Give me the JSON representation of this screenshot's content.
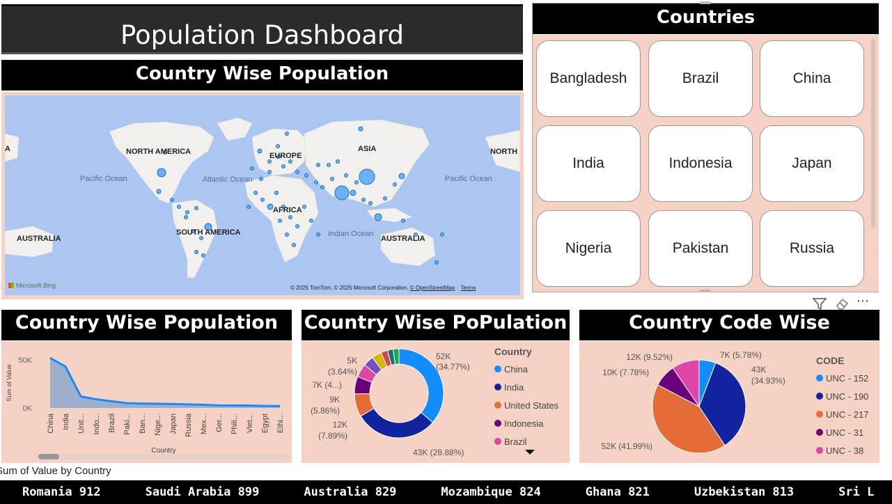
{
  "dashboard": {
    "title": "Population Dashboard"
  },
  "map_panel": {
    "title": "Country Wise Population",
    "labels": {
      "north_america": "NORTH AMERICA",
      "north_right": "NORTH",
      "europe": "EUROPE",
      "asia": "ASIA",
      "africa": "AFRICA",
      "south_america": "SOUTH AMERICA",
      "australia_left": "AUSTRALIA",
      "australia_right": "AUSTRALIA",
      "a_left": "A",
      "pacific_left": "Pacific Ocean",
      "pacific_right": "Pacific Ocean",
      "atlantic": "Atlantic Ocean",
      "indian": "Indian Ocean"
    },
    "logo": "Microsoft Bing",
    "attribution": "© 2025 TomTom, © 2025 Microsoft Corporation,",
    "osm_link": "© OpenStreetMap",
    "terms_link": "Terms"
  },
  "slicer": {
    "title": "Countries",
    "items": [
      "Bangladesh",
      "Brazil",
      "China",
      "India",
      "Indonesia",
      "Japan",
      "Nigeria",
      "Pakistan",
      "Russia"
    ]
  },
  "toolbar_icons": [
    "filter-icon",
    "eraser-icon",
    "more-options-icon"
  ],
  "area_chart": {
    "title": "Country Wise Population",
    "caption": "Sum of Value by Country"
  },
  "donut_chart": {
    "title": "Country Wise PoPulation",
    "legend_title": "Country",
    "labels": {
      "china": "52K",
      "china_pct": "(34.77%)",
      "india": "43K (28.88%)",
      "us": "12K",
      "us_pct": "(7.89%)",
      "indo": "9K",
      "indo_pct": "(5.86%)",
      "brazil": "7K (4...)",
      "pak": "5K",
      "pak_pct": "(3.64%)"
    }
  },
  "pie_chart": {
    "title": "Country Code Wise Population",
    "legend_title": "CODE",
    "labels": {
      "a": "7K (5.78%)",
      "b": "43K",
      "b_pct": "(34.93%)",
      "c": "52K (41.99%)",
      "d": "10K (7.78%)",
      "e": "12K (9.52%)"
    }
  },
  "ticker": [
    "Romania 912",
    "Saudi Arabia 899",
    "Australia 829",
    "Mozambique 824",
    "Ghana 821",
    "Uzbekistan 813",
    "Sri L"
  ],
  "chart_data": [
    {
      "type": "area",
      "title": "Country Wise Population",
      "xlabel": "Country",
      "ylabel": "Sum of Value",
      "categories": [
        "China",
        "India",
        "Unit...",
        "Indo...",
        "Brazil",
        "Paki...",
        "Ban...",
        "Nige...",
        "Japan",
        "Russia",
        "Mex...",
        "Ger...",
        "Phili...",
        "Viet...",
        "Egypt",
        "Ethi..."
      ],
      "values": [
        52000,
        43000,
        12000,
        9000,
        7000,
        5000,
        4500,
        4300,
        4100,
        3700,
        3300,
        2600,
        2500,
        2500,
        2100,
        1900
      ],
      "yticks": [
        "50K",
        "0K"
      ],
      "ylim": [
        0,
        55000
      ],
      "color": "#118dff"
    },
    {
      "type": "pie",
      "subtype": "donut",
      "title": "Country Wise PoPulation",
      "legend_title": "Country",
      "series": [
        {
          "name": "China",
          "value": 52000,
          "color": "#118dff"
        },
        {
          "name": "India",
          "value": 43000,
          "color": "#12239e"
        },
        {
          "name": "United States",
          "value": 12000,
          "color": "#e66c37"
        },
        {
          "name": "Indonesia",
          "value": 9000,
          "color": "#6b007b"
        },
        {
          "name": "Brazil",
          "value": 7000,
          "color": "#e044a7"
        },
        {
          "name": "",
          "value": 5500,
          "color": "#744ec2"
        },
        {
          "name": "",
          "value": 5000,
          "color": "#d9b300"
        },
        {
          "name": "",
          "value": 3500,
          "color": "#d64550"
        },
        {
          "name": "",
          "value": 3000,
          "color": "#197278"
        },
        {
          "name": "",
          "value": 3000,
          "color": "#1aab40"
        }
      ],
      "legend_visible": [
        "China",
        "India",
        "United States",
        "Indonesia",
        "Brazil"
      ]
    },
    {
      "type": "pie",
      "title": "Country Code Wise Population",
      "legend_title": "CODE",
      "series": [
        {
          "name": "UNC - 152",
          "value": 5.78,
          "color": "#118dff"
        },
        {
          "name": "UNC - 190",
          "value": 34.93,
          "color": "#12239e"
        },
        {
          "name": "UNC - 217",
          "value": 41.99,
          "color": "#e66c37"
        },
        {
          "name": "UNC - 31",
          "value": 7.78,
          "color": "#6b007b"
        },
        {
          "name": "UNC - 38",
          "value": 9.52,
          "color": "#e044a7"
        }
      ]
    }
  ]
}
